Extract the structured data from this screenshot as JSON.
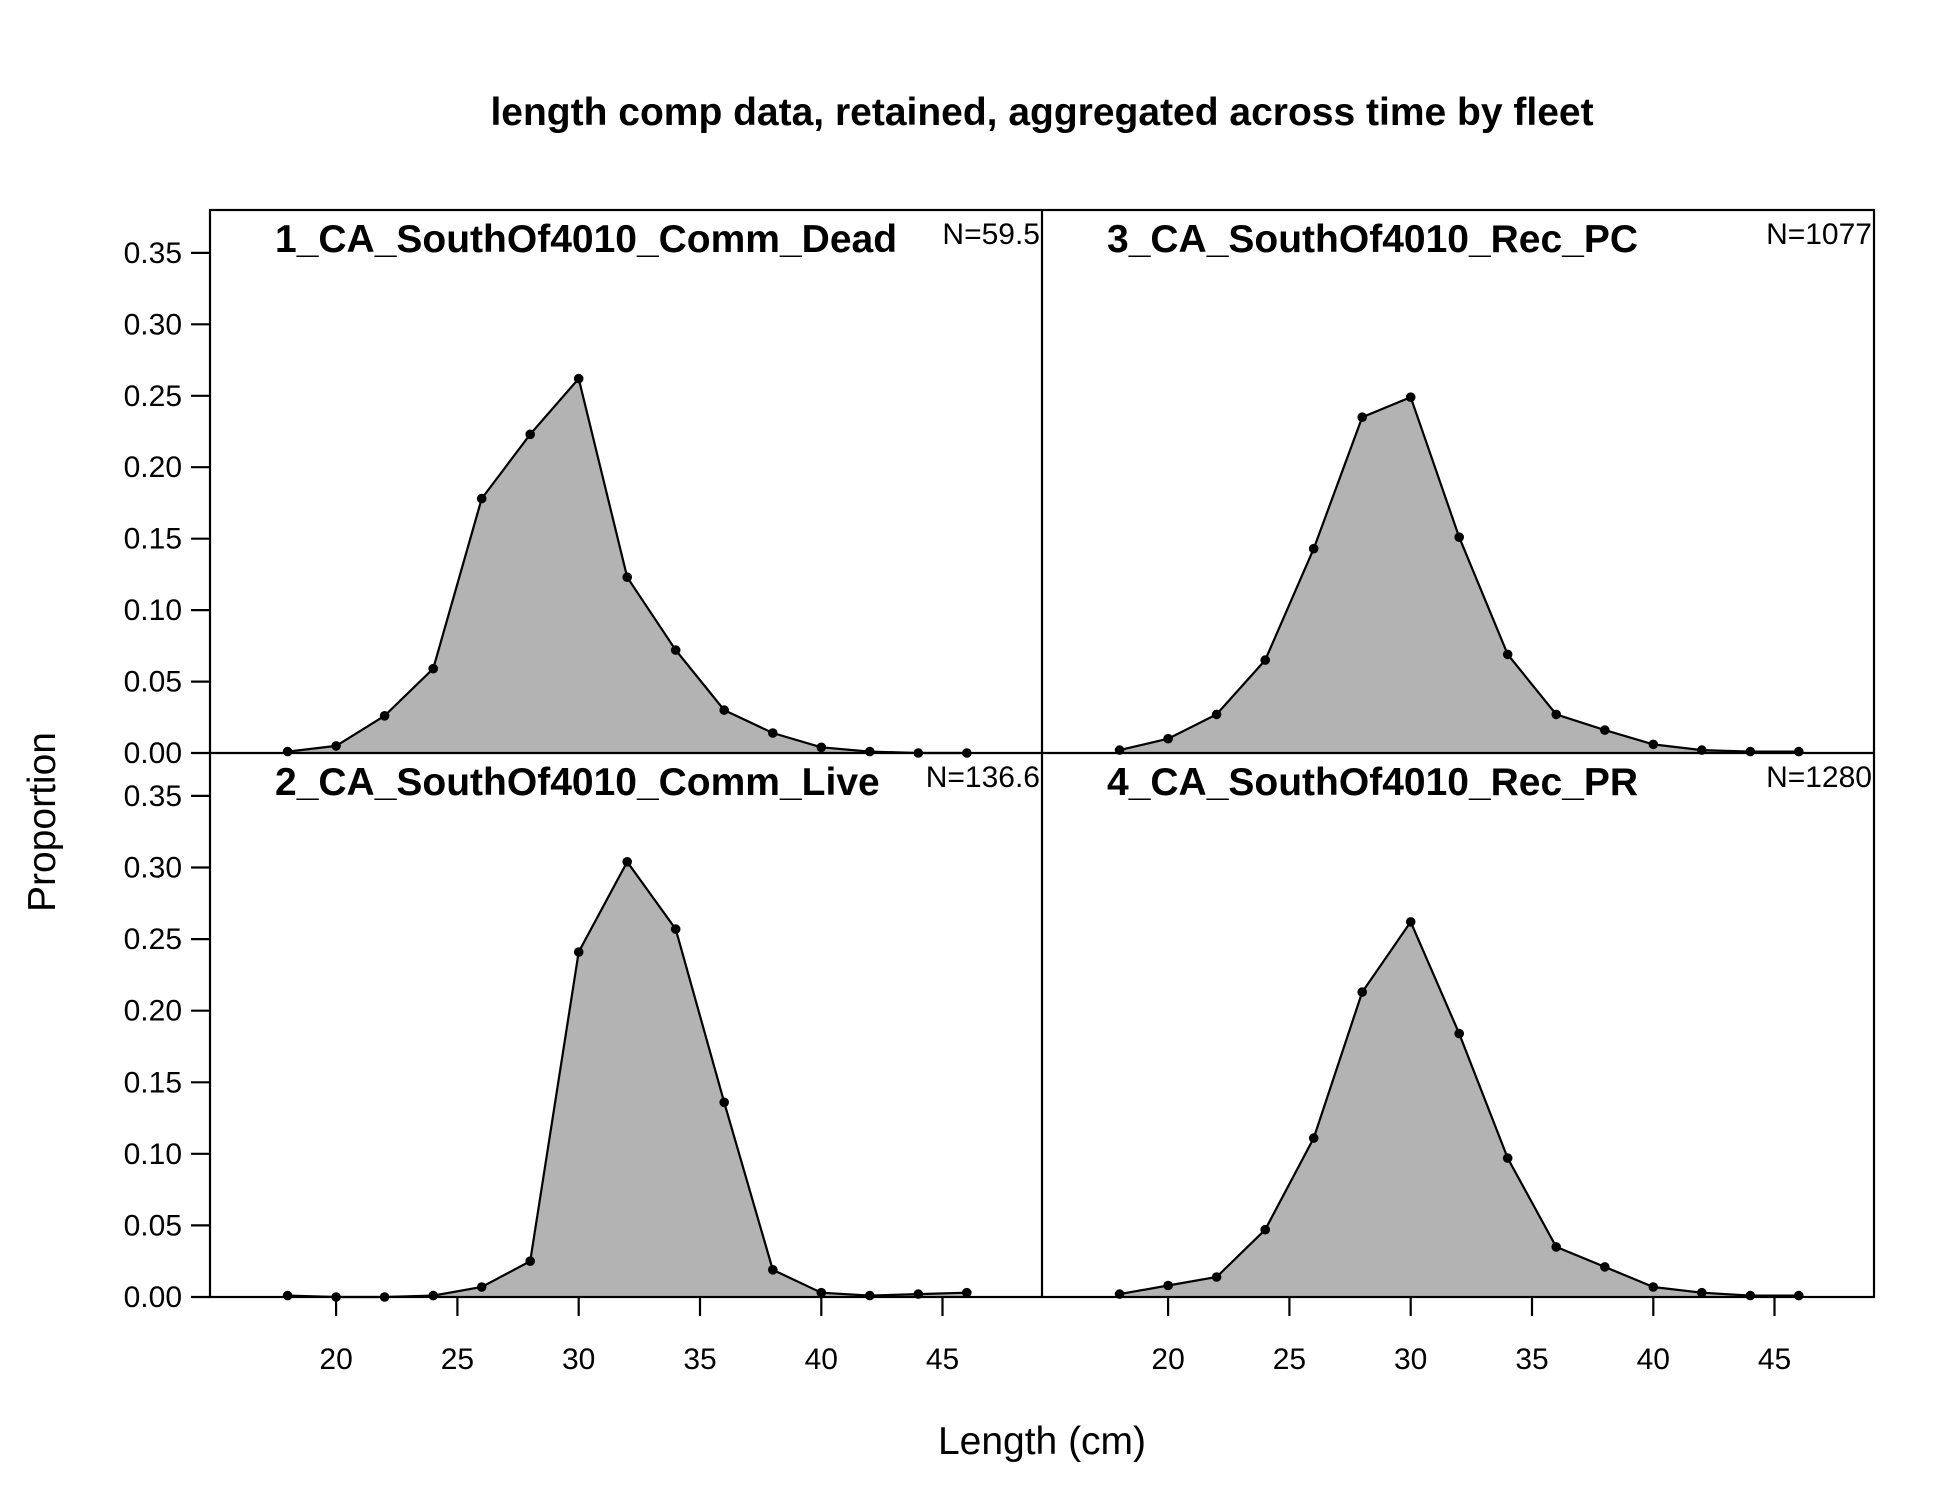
{
  "chart_data": {
    "type": "area",
    "title": "length comp data, retained, aggregated across time by fleet",
    "xlabel": "Length (cm)",
    "ylabel": "Proportion",
    "xlim": [
      14.8,
      49.1
    ],
    "ylim": [
      0,
      0.38
    ],
    "x_ticks": [
      20,
      25,
      30,
      35,
      40,
      45
    ],
    "y_ticks": [
      0.0,
      0.05,
      0.1,
      0.15,
      0.2,
      0.25,
      0.3,
      0.35
    ],
    "y_tick_labels": [
      "0.00",
      "0.05",
      "0.10",
      "0.15",
      "0.20",
      "0.25",
      "0.30",
      "0.35"
    ],
    "grid": false,
    "fill_color": "#b3b3b3",
    "line_color": "#000000",
    "layout": "2 rows by 2 columns",
    "panels": [
      {
        "name": "1_CA_SouthOf4010_Comm_Dead",
        "n_label": "N=59.5",
        "position": "top-left",
        "x": [
          18,
          20,
          22,
          24,
          26,
          28,
          30,
          32,
          34,
          36,
          38,
          40,
          42,
          44,
          46
        ],
        "values": [
          0.001,
          0.005,
          0.026,
          0.059,
          0.178,
          0.223,
          0.262,
          0.123,
          0.072,
          0.03,
          0.014,
          0.004,
          0.001,
          0.0,
          0.0
        ]
      },
      {
        "name": "3_CA_SouthOf4010_Rec_PC",
        "n_label": "N=1077",
        "position": "top-right",
        "x": [
          18,
          20,
          22,
          24,
          26,
          28,
          30,
          32,
          34,
          36,
          38,
          40,
          42,
          44,
          46
        ],
        "values": [
          0.002,
          0.01,
          0.027,
          0.065,
          0.143,
          0.235,
          0.249,
          0.151,
          0.069,
          0.027,
          0.016,
          0.006,
          0.002,
          0.001,
          0.001
        ]
      },
      {
        "name": "2_CA_SouthOf4010_Comm_Live",
        "n_label": "N=136.6",
        "position": "bottom-left",
        "x": [
          18,
          20,
          22,
          24,
          26,
          28,
          30,
          32,
          34,
          36,
          38,
          40,
          42,
          44,
          46
        ],
        "values": [
          0.001,
          0.0,
          0.0,
          0.001,
          0.007,
          0.025,
          0.241,
          0.304,
          0.257,
          0.136,
          0.019,
          0.003,
          0.001,
          0.002,
          0.003
        ]
      },
      {
        "name": "4_CA_SouthOf4010_Rec_PR",
        "n_label": "N=1280",
        "position": "bottom-right",
        "x": [
          18,
          20,
          22,
          24,
          26,
          28,
          30,
          32,
          34,
          36,
          38,
          40,
          42,
          44,
          46
        ],
        "values": [
          0.002,
          0.008,
          0.014,
          0.047,
          0.111,
          0.213,
          0.262,
          0.184,
          0.097,
          0.035,
          0.021,
          0.007,
          0.003,
          0.001,
          0.001
        ]
      }
    ]
  }
}
